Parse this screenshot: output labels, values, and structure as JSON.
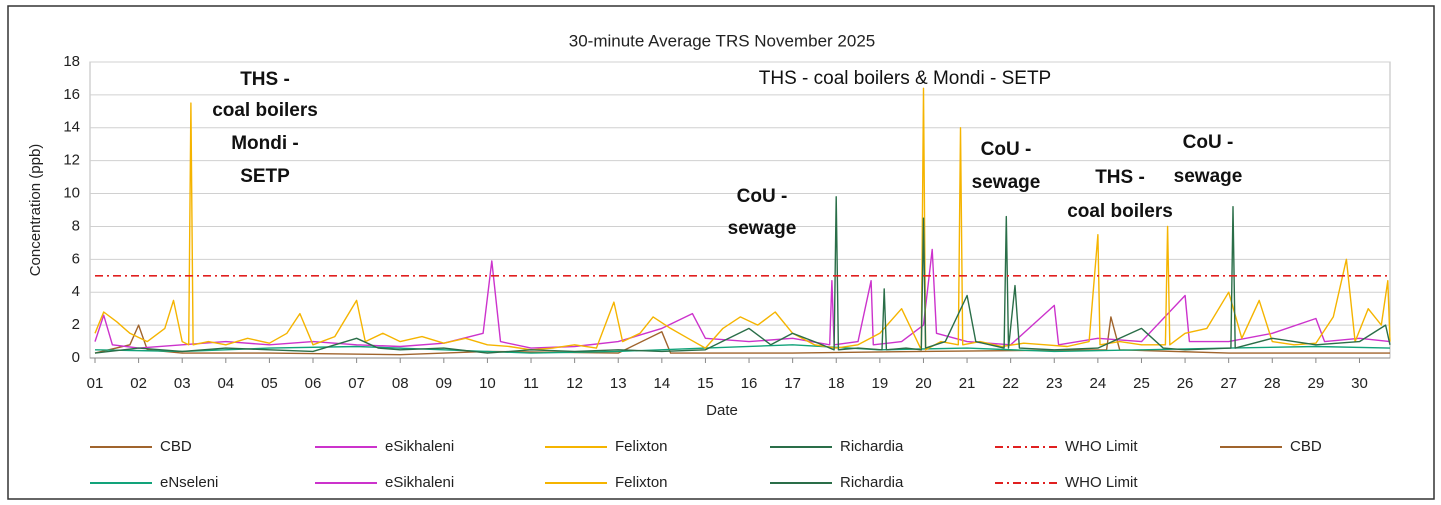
{
  "chart_data": {
    "type": "line",
    "title": "30-minute Average TRS November  2025",
    "xlabel": "Date",
    "ylabel": "Concentration (ppb)",
    "xlim": [
      1,
      30.7
    ],
    "xticks": [
      {
        "value": 1,
        "label": "01"
      },
      {
        "value": 2,
        "label": "02"
      },
      {
        "value": 3,
        "label": "03"
      },
      {
        "value": 4,
        "label": "04"
      },
      {
        "value": 5,
        "label": "05"
      },
      {
        "value": 6,
        "label": "06"
      },
      {
        "value": 7,
        "label": "07"
      },
      {
        "value": 8,
        "label": "08"
      },
      {
        "value": 9,
        "label": "09"
      },
      {
        "value": 10,
        "label": "10"
      },
      {
        "value": 11,
        "label": "11"
      },
      {
        "value": 12,
        "label": "12"
      },
      {
        "value": 13,
        "label": "13"
      },
      {
        "value": 14,
        "label": "14"
      },
      {
        "value": 15,
        "label": "15"
      },
      {
        "value": 16,
        "label": "16"
      },
      {
        "value": 17,
        "label": "17"
      },
      {
        "value": 18,
        "label": "18"
      },
      {
        "value": 19,
        "label": "19"
      },
      {
        "value": 20,
        "label": "20"
      },
      {
        "value": 21,
        "label": "21"
      },
      {
        "value": 22,
        "label": "22"
      },
      {
        "value": 23,
        "label": "23"
      },
      {
        "value": 24,
        "label": "24"
      },
      {
        "value": 25,
        "label": "25"
      },
      {
        "value": 26,
        "label": "26"
      },
      {
        "value": 27,
        "label": "27"
      },
      {
        "value": 28,
        "label": "28"
      },
      {
        "value": 29,
        "label": "29"
      },
      {
        "value": 30,
        "label": "30"
      }
    ],
    "ylim": [
      0,
      18
    ],
    "yticks": [
      0,
      2,
      4,
      6,
      8,
      10,
      12,
      14,
      16,
      18
    ],
    "grid": true,
    "series": [
      {
        "name": "CBD",
        "color": "#a0642d",
        "x": [
          1,
          1.8,
          2.0,
          2.2,
          3,
          5,
          8,
          10,
          13,
          14,
          14.2,
          17,
          20,
          24.2,
          24.3,
          24.5,
          27,
          30.7
        ],
        "values": [
          0.3,
          0.8,
          2.0,
          0.5,
          0.3,
          0.3,
          0.2,
          0.4,
          0.3,
          1.6,
          0.3,
          0.3,
          0.4,
          0.5,
          2.5,
          0.5,
          0.3,
          0.3
        ]
      },
      {
        "name": "eNseleni",
        "color": "#12a37a",
        "x": [
          1,
          3,
          5,
          7,
          9,
          11,
          13,
          15,
          17,
          19,
          21,
          23,
          25,
          27,
          29,
          30.7
        ],
        "values": [
          0.5,
          0.4,
          0.6,
          0.7,
          0.5,
          0.3,
          0.4,
          0.6,
          0.8,
          0.5,
          0.6,
          0.4,
          0.5,
          0.6,
          0.7,
          0.6
        ]
      },
      {
        "name": "eSikhaleni",
        "color": "#cc33cc",
        "x": [
          1.0,
          1.2,
          1.4,
          2.0,
          3.0,
          4.0,
          5.0,
          6.0,
          7.0,
          8.0,
          9.0,
          9.9,
          10.1,
          10.3,
          11.0,
          12.0,
          13.0,
          14.0,
          14.7,
          15.0,
          16.0,
          17.0,
          17.85,
          17.9,
          17.95,
          18.5,
          18.8,
          18.85,
          19.5,
          20.0,
          20.2,
          20.3,
          21.0,
          22.0,
          23.0,
          23.1,
          24.0,
          25.0,
          26.0,
          26.1,
          27.0,
          28.0,
          29.0,
          29.2,
          30.0,
          30.7
        ],
        "values": [
          1.0,
          2.6,
          0.8,
          0.6,
          0.8,
          1.0,
          0.8,
          1.0,
          0.8,
          0.7,
          0.9,
          1.5,
          5.9,
          1.0,
          0.6,
          0.7,
          1.0,
          1.8,
          2.7,
          1.2,
          1.0,
          1.2,
          0.8,
          4.7,
          0.8,
          1.0,
          4.7,
          0.8,
          1.0,
          2.0,
          6.6,
          1.5,
          1.0,
          0.8,
          3.2,
          0.8,
          1.2,
          1.0,
          3.8,
          1.0,
          1.0,
          1.5,
          2.4,
          1.0,
          1.2,
          1.0
        ]
      },
      {
        "name": "Felixton",
        "color": "#f5b400",
        "x": [
          1.0,
          1.2,
          1.5,
          1.8,
          2.2,
          2.6,
          2.8,
          3.0,
          3.15,
          3.2,
          3.25,
          3.6,
          4.0,
          4.5,
          5.0,
          5.4,
          5.7,
          6.0,
          6.5,
          7.0,
          7.2,
          7.6,
          8.0,
          8.5,
          9.0,
          9.5,
          10.0,
          10.5,
          11.0,
          11.5,
          12.0,
          12.5,
          12.9,
          13.1,
          13.5,
          13.8,
          14.2,
          14.6,
          15.0,
          15.4,
          15.8,
          16.2,
          16.6,
          17.0,
          17.5,
          18.0,
          18.5,
          19.0,
          19.5,
          19.95,
          20.0,
          20.05,
          20.4,
          20.8,
          20.85,
          20.9,
          21.3,
          21.8,
          22.3,
          22.8,
          23.3,
          23.8,
          24.0,
          24.05,
          24.5,
          25.0,
          25.55,
          25.6,
          25.65,
          26.0,
          26.5,
          27.0,
          27.3,
          27.7,
          28.0,
          28.5,
          29.0,
          29.4,
          29.7,
          29.9,
          30.2,
          30.5,
          30.65,
          30.7
        ],
        "values": [
          1.5,
          2.8,
          2.2,
          1.5,
          1.0,
          1.8,
          3.5,
          1.0,
          0.8,
          15.5,
          0.8,
          1.0,
          0.8,
          1.2,
          0.9,
          1.5,
          2.7,
          0.8,
          1.3,
          3.5,
          1.0,
          1.5,
          1.0,
          1.3,
          0.9,
          1.2,
          0.8,
          0.7,
          0.5,
          0.6,
          0.8,
          0.6,
          3.4,
          1.0,
          1.5,
          2.5,
          1.8,
          1.2,
          0.6,
          1.8,
          2.5,
          2.0,
          2.8,
          1.5,
          0.8,
          0.6,
          0.8,
          1.5,
          3.0,
          0.5,
          16.4,
          0.5,
          1.0,
          0.8,
          14.0,
          0.8,
          1.0,
          0.7,
          0.9,
          0.8,
          0.7,
          1.0,
          7.5,
          0.8,
          1.0,
          0.8,
          0.8,
          8.0,
          0.8,
          1.5,
          1.8,
          4.0,
          1.2,
          3.5,
          1.0,
          0.8,
          0.9,
          2.5,
          6.0,
          1.0,
          3.0,
          2.0,
          4.7,
          1.0
        ]
      },
      {
        "name": "Richardia",
        "color": "#2a6e48",
        "x": [
          1.0,
          2.0,
          3.0,
          4.0,
          5.0,
          6.0,
          7.0,
          7.5,
          8.0,
          9.0,
          10.0,
          11.0,
          12.0,
          13.0,
          14.0,
          15.0,
          16.0,
          16.5,
          17.0,
          17.5,
          17.95,
          18.0,
          18.05,
          18.5,
          19.05,
          19.1,
          19.15,
          19.6,
          19.95,
          20.0,
          20.05,
          20.5,
          21.0,
          21.2,
          21.85,
          21.9,
          21.95,
          22.1,
          22.2,
          23.0,
          24.0,
          25.0,
          25.5,
          26.0,
          27.05,
          27.1,
          27.15,
          28.0,
          29.0,
          30.0,
          30.6,
          30.7
        ],
        "values": [
          0.3,
          0.6,
          0.4,
          0.6,
          0.5,
          0.4,
          1.2,
          0.6,
          0.5,
          0.6,
          0.3,
          0.5,
          0.4,
          0.5,
          0.4,
          0.5,
          1.8,
          0.8,
          1.5,
          1.0,
          0.5,
          9.8,
          0.5,
          0.6,
          0.5,
          4.2,
          0.5,
          0.6,
          0.5,
          8.5,
          0.6,
          1.0,
          3.8,
          1.0,
          0.6,
          8.6,
          0.6,
          4.4,
          0.6,
          0.5,
          0.6,
          1.8,
          0.6,
          0.5,
          0.6,
          9.2,
          0.6,
          1.2,
          0.8,
          1.0,
          2.0,
          0.8
        ]
      },
      {
        "name": "WHO Limit",
        "color": "#e02020",
        "dash": true,
        "x": [
          1,
          30.7
        ],
        "values": [
          5,
          5
        ]
      }
    ],
    "legend": [
      {
        "name": "CBD",
        "color": "#a0642d"
      },
      {
        "name": "eSikhaleni",
        "color": "#cc33cc"
      },
      {
        "name": "Felixton",
        "color": "#f5b400"
      },
      {
        "name": "Richardia",
        "color": "#2a6e48"
      },
      {
        "name": "WHO Limit",
        "color": "#e02020",
        "dash": true
      },
      {
        "name": "CBD",
        "color": "#a0642d"
      },
      {
        "name": "eNseleni",
        "color": "#12a37a"
      },
      {
        "name": "eSikhaleni",
        "color": "#cc33cc"
      },
      {
        "name": "Felixton",
        "color": "#f5b400"
      },
      {
        "name": "Richardia",
        "color": "#2a6e48"
      },
      {
        "name": "WHO Limit",
        "color": "#e02020",
        "dash": true
      }
    ],
    "annotations": [
      {
        "lines": [
          "THS -",
          "coal boilers",
          "Mondi -",
          "SETP"
        ]
      },
      {
        "lines": [
          "THS - coal boilers & Mondi -  SETP"
        ]
      },
      {
        "lines": [
          "CoU -",
          "sewage"
        ]
      },
      {
        "lines": [
          "CoU -",
          "sewage"
        ]
      },
      {
        "lines": [
          "THS -",
          "coal boilers"
        ]
      },
      {
        "lines": [
          "CoU -",
          "sewage"
        ]
      }
    ]
  }
}
